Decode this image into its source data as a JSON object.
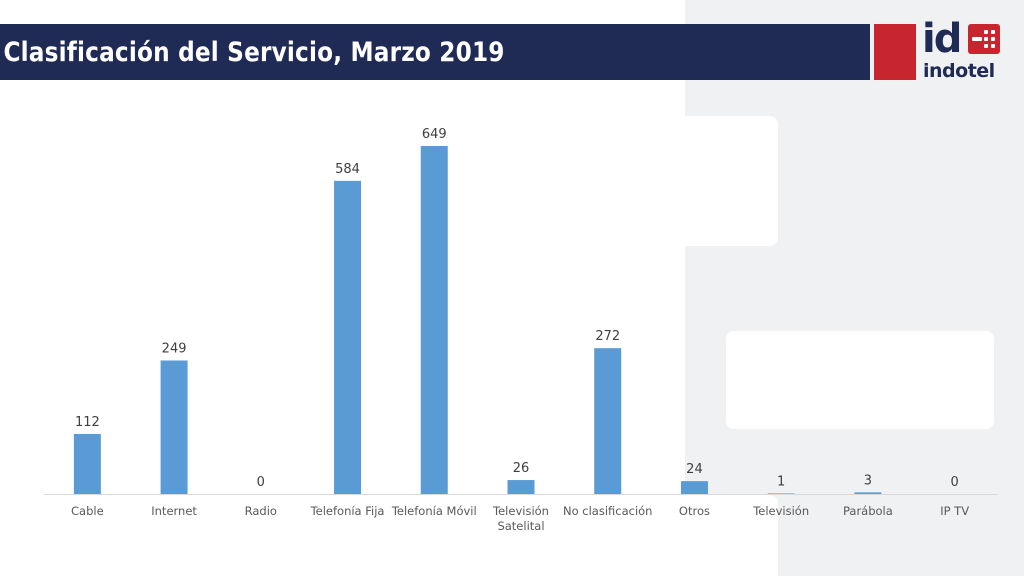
{
  "slide": {
    "title": "Clasificación del Servicio, Marzo 2019"
  },
  "logo": {
    "mark": "id",
    "word": "indotel",
    "icon": "indotel-logo-icon"
  },
  "colors": {
    "title_bar": "#1f2a55",
    "logo_red": "#c8262e",
    "bar": "#5b9bd5",
    "background_panel": "#eff1f2"
  },
  "chart_data": {
    "type": "bar",
    "title": "",
    "xlabel": "",
    "ylabel": "",
    "ylim": [
      0,
      649
    ],
    "grid": false,
    "legend": "none",
    "categories": [
      "Cable",
      "Internet",
      "Radio",
      "Telefonía Fija",
      "Telefonía Móvil",
      "Televisión Satelital",
      "No clasificación",
      "Otros",
      "Televisión",
      "Parábola",
      "IP TV"
    ],
    "values": [
      112,
      249,
      0,
      584,
      649,
      26,
      272,
      24,
      1,
      3,
      0
    ],
    "data_labels": [
      "112",
      "249",
      "0",
      "584",
      "649",
      "26",
      "272",
      "24",
      "1",
      "3",
      "0"
    ]
  }
}
